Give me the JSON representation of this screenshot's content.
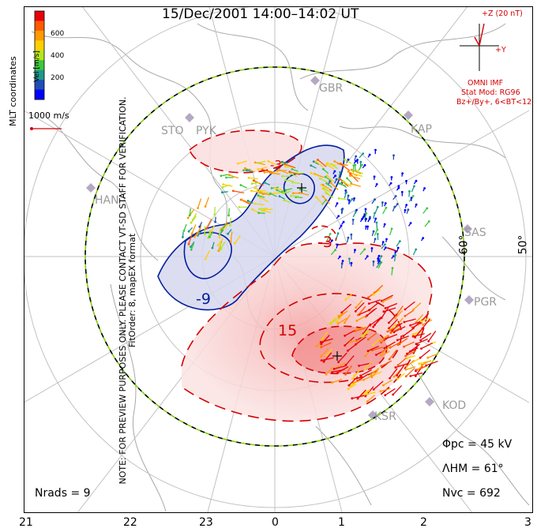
{
  "title": "15/Dec/2001  14:00–14:02  UT",
  "side_note": [
    "NOTE: FOR PREVIEW PURPOSES ONLY. PLEASE CONTACT VT-SD STAFF FOR VERIFICATION.",
    "FitOrder: 8, mapEX format"
  ],
  "colorbar": {
    "label": "Vel [m/s]",
    "ticks": [
      "600",
      "400",
      "200"
    ],
    "colors": [
      "#e8000b",
      "#ff5a00",
      "#ff9a00",
      "#ffd000",
      "#b5e61d",
      "#3cc83c",
      "#1e9a8a",
      "#1f4fb5",
      "#0000ff"
    ]
  },
  "coord_label": "MLT coordinates",
  "ref_vector_label": "1000 m/s",
  "imf": {
    "z_label": "+Z (20 nT)",
    "y_label": "+Y",
    "lines": [
      "OMNI IMF",
      "Stat Mod: RG96",
      "Bz+/By+, 6<BT<12"
    ]
  },
  "radars": [
    "GBR",
    "KAP",
    "STO",
    "PYK",
    "HAN",
    "SAS",
    "PGR",
    "KOD",
    "KSR"
  ],
  "lat_labels": [
    "60°",
    "50°"
  ],
  "mlt_labels": [
    "21",
    "22",
    "23",
    "0",
    "1",
    "2",
    "3"
  ],
  "contours": [
    "-9",
    "-3",
    "15",
    "-3"
  ],
  "stats": {
    "phi_pc": "Φpc = 45 kV",
    "lambda_hm": "ΛHM = 61°",
    "n_vc": "Nvc = 692",
    "n_rads": "Nrads = 9"
  },
  "colors": {
    "positive": "#d40000",
    "negative": "#0020a0",
    "hmb": "#80d000",
    "land": "#9a9a9a"
  }
}
